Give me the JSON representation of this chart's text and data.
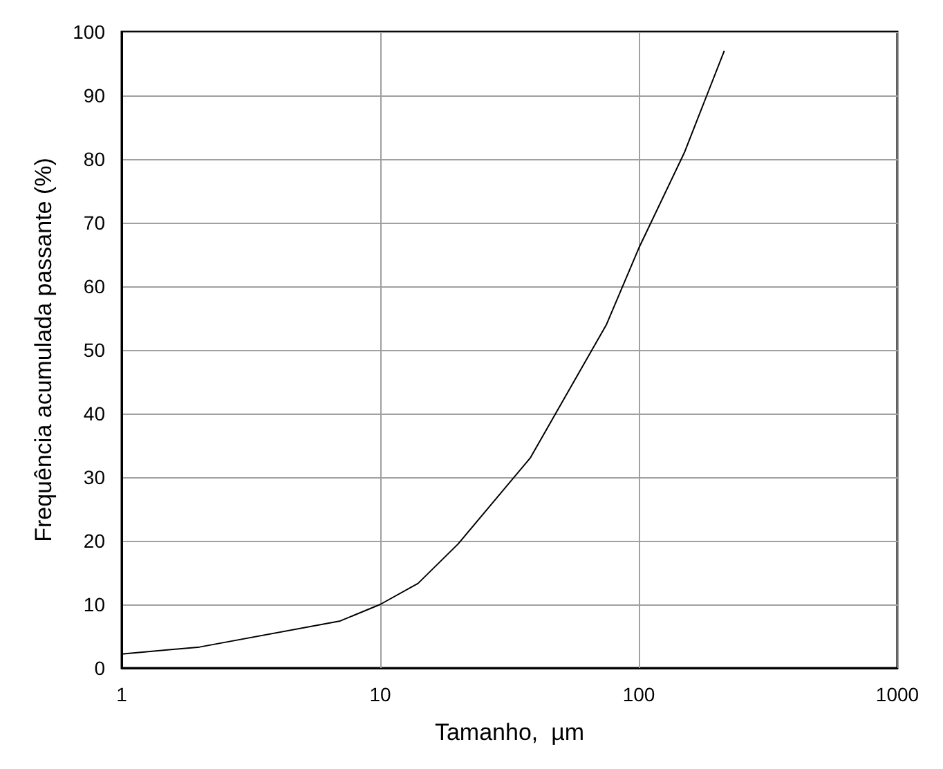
{
  "chart_data": {
    "type": "line",
    "xlabel": "Tamanho,  µm",
    "ylabel": "Frequência acumulada passante (%)",
    "x": [
      1,
      2,
      7,
      10,
      14,
      20,
      38,
      75,
      100,
      150,
      214
    ],
    "series": [
      {
        "color": "#000000",
        "values": [
          2.2,
          3.3,
          7.4,
          10,
          13.3,
          19.5,
          33,
          54,
          66,
          81,
          97
        ]
      }
    ],
    "xlim": [
      1,
      1000
    ],
    "xticks": [
      1,
      10,
      100,
      1000
    ],
    "ylim": [
      0,
      100
    ],
    "yticks": [
      0,
      10,
      20,
      30,
      40,
      50,
      60,
      70,
      80,
      90,
      100
    ],
    "log": "x",
    "grid": true,
    "marker": "none",
    "line_style": "solid"
  }
}
